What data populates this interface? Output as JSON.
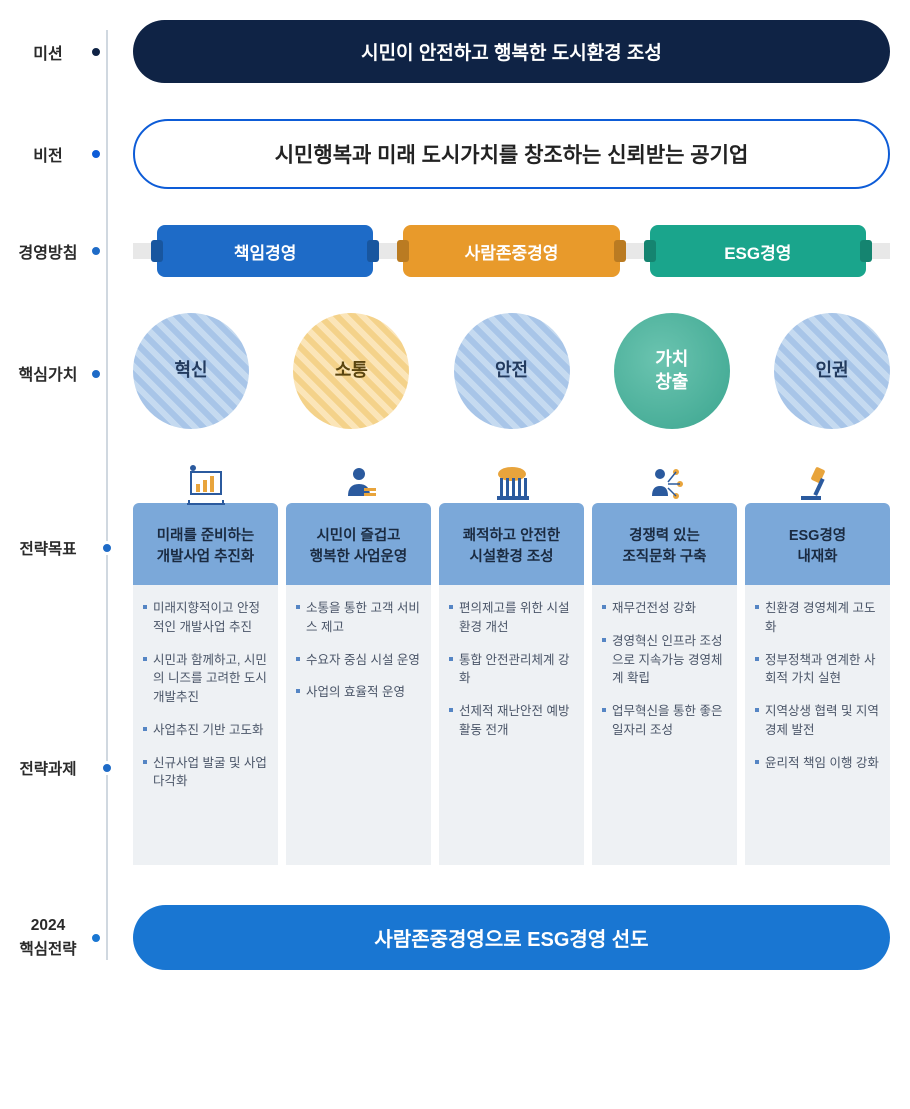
{
  "colors": {
    "timeline": "#d0d8e0",
    "dot_mission": "#0f2345",
    "dot_vision": "#0d5cd7",
    "dot_policy": "#1e6bc7",
    "dot_values": "#1e6bc7",
    "dot_strategy_goal": "#1e6bc7",
    "dot_strategy_task": "#1e6bc7",
    "dot_2024": "#1976d2",
    "pill_dark_bg": "#0f2345",
    "pill_outline_border": "#0d5cd7",
    "pill_blue_bg": "#1976d2",
    "strat_title_bg": "#7ba8d9",
    "strat_tasks_bg": "#eef1f4",
    "task_bullet": "#5585c4",
    "task_text": "#4a5568"
  },
  "sections": {
    "mission": {
      "label": "미션",
      "text": "시민이 안전하고 행복한 도시환경 조성"
    },
    "vision": {
      "label": "비전",
      "text": "시민행복과 미래 도시가치를 창조하는 신뢰받는 공기업"
    },
    "policy": {
      "label": "경영방침",
      "items": [
        {
          "label": "책임경영",
          "bg": "#1e6bc7"
        },
        {
          "label": "사람존중경영",
          "bg": "#e89a2b"
        },
        {
          "label": "ESG경영",
          "bg": "#1aa58c"
        }
      ]
    },
    "values": {
      "label": "핵심가치",
      "items": [
        {
          "label": "혁신",
          "style": "hatch-blue"
        },
        {
          "label": "소통",
          "style": "hatch-yellow"
        },
        {
          "label": "안전",
          "style": "hatch-blue"
        },
        {
          "label": "가치\n창출",
          "style": "val-teal"
        },
        {
          "label": "인권",
          "style": "hatch-blue"
        }
      ]
    },
    "strategy": {
      "goal_label": "전략목표",
      "task_label": "전략과제",
      "columns": [
        {
          "icon": "chart",
          "title": "미래를 준비하는\n개발사업 추진화",
          "tasks": [
            "미래지향적이고 안정적인 개발사업 추진",
            "시민과 함께하고, 시민의 니즈를 고려한 도시개발추진",
            "사업추진 기반 고도화",
            "신규사업 발굴 및 사업다각화"
          ]
        },
        {
          "icon": "person",
          "title": "시민이 즐겁고\n행복한 사업운영",
          "tasks": [
            "소통을 통한 고객 서비스 제고",
            "수요자 중심 시설 운영",
            "사업의 효율적 운영"
          ]
        },
        {
          "icon": "building",
          "title": "쾌적하고 안전한\n시설환경 조성",
          "tasks": [
            "편의제고를 위한 시설환경 개선",
            "통합 안전관리체계 강화",
            "선제적 재난안전 예방활동 전개"
          ]
        },
        {
          "icon": "network",
          "title": "경쟁력 있는\n조직문화 구축",
          "tasks": [
            "재무건전성 강화",
            "경영혁신 인프라 조성으로 지속가능 경영체계 확립",
            "업무혁신을 통한 좋은 일자리 조성"
          ]
        },
        {
          "icon": "gavel",
          "title": "ESG경영\n내재화",
          "tasks": [
            "친환경 경영체계 고도화",
            "정부정책과 연계한 사회적 가치 실현",
            "지역상생 협력 및 지역경제 발전",
            "윤리적 책임 이행 강화"
          ]
        }
      ]
    },
    "core2024": {
      "label": "2024\n핵심전략",
      "text": "사람존중경영으로 ESG경영 선도"
    }
  }
}
